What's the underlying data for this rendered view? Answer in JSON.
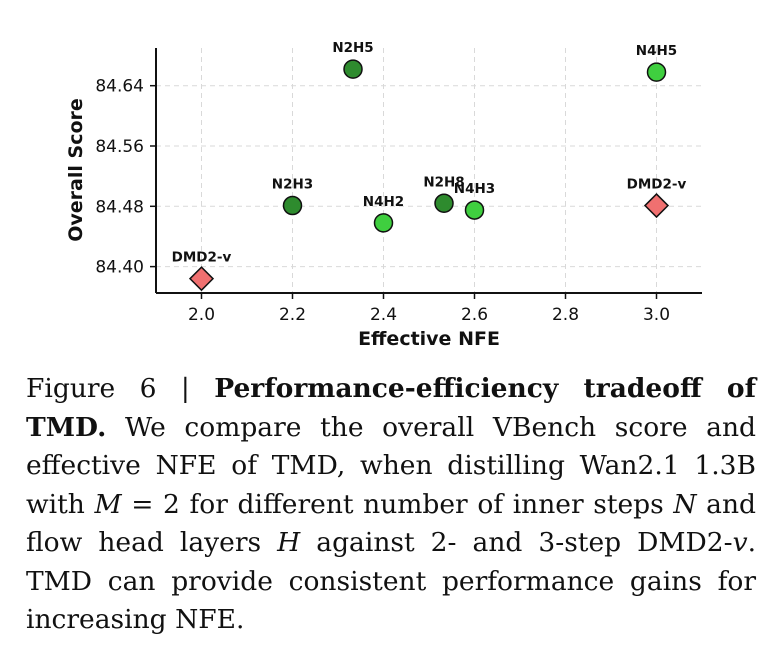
{
  "chart_data": {
    "type": "scatter",
    "xlabel": "Effective NFE",
    "ylabel": "Overall Score",
    "xlim": [
      1.9,
      3.1
    ],
    "ylim": [
      84.365,
      84.69
    ],
    "xticks": [
      2.0,
      2.2,
      2.4,
      2.6,
      2.8,
      3.0
    ],
    "xtick_labels": [
      "2.0",
      "2.2",
      "2.4",
      "2.6",
      "2.8",
      "3.0"
    ],
    "yticks": [
      84.4,
      84.48,
      84.56,
      84.64
    ],
    "ytick_labels": [
      "84.40",
      "84.48",
      "84.56",
      "84.64"
    ],
    "grid": true,
    "points": [
      {
        "label": "N2H5",
        "x": 2.333,
        "y": 84.662,
        "marker": "circle",
        "color": "#2e8b2e"
      },
      {
        "label": "N4H5",
        "x": 3.0,
        "y": 84.658,
        "marker": "circle",
        "color": "#3fcf3f"
      },
      {
        "label": "N2H3",
        "x": 2.2,
        "y": 84.481,
        "marker": "circle",
        "color": "#2e8b2e"
      },
      {
        "label": "N4H2",
        "x": 2.4,
        "y": 84.458,
        "marker": "circle",
        "color": "#3fcf3f"
      },
      {
        "label": "N2H8",
        "x": 2.533,
        "y": 84.484,
        "marker": "circle",
        "color": "#2e8b2e"
      },
      {
        "label": "N4H3",
        "x": 2.6,
        "y": 84.475,
        "marker": "circle",
        "color": "#3fcf3f"
      },
      {
        "label": "DMD2-v",
        "x": 3.0,
        "y": 84.481,
        "marker": "diamond",
        "color": "#f07070"
      },
      {
        "label": "DMD2-v",
        "x": 2.0,
        "y": 84.384,
        "marker": "diamond",
        "color": "#f07070"
      }
    ]
  },
  "caption": {
    "figure_label": "Figure 6 | ",
    "title": "Performance-efficiency tradeoff of TMD.",
    "text_1": " We compare the overall VBench score and effective NFE of TMD, when distilling Wan2.1 1.3B with ",
    "math_m": "M",
    "text_2": " = 2 for different number of inner steps ",
    "math_n": "N",
    "text_3": " and flow head layers ",
    "math_h": "H",
    "text_4": " against 2- and 3-step DMD2-",
    "math_v": "v",
    "text_5": ". TMD can provide consistent performance gains for increasing NFE."
  }
}
